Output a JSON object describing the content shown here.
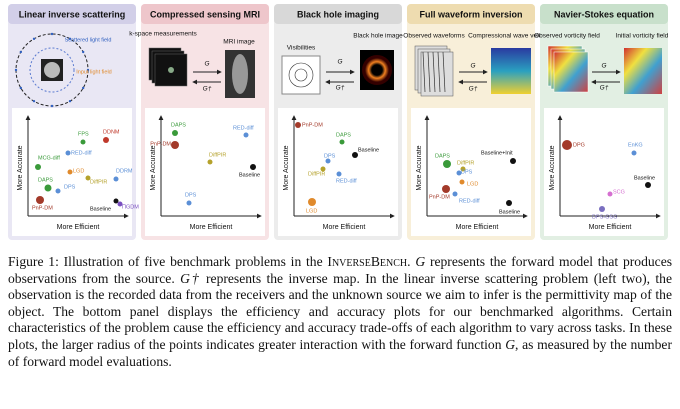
{
  "panels": [
    {
      "title": "Linear inverse scattering",
      "labels": [
        "Scattered light field",
        "Input light field"
      ],
      "y_axis": "More Accurate",
      "x_axis": "More Efficient",
      "points": [
        {
          "label": "MCG-diff",
          "color": "#3a9a3a"
        },
        {
          "label": "FPS",
          "color": "#3a9a3a"
        },
        {
          "label": "DDNM",
          "color": "#c0392b"
        },
        {
          "label": "RED-diff",
          "color": "#5b8fd6"
        },
        {
          "label": "DAPS",
          "color": "#3a9a3a"
        },
        {
          "label": "LGD",
          "color": "#e08a2c"
        },
        {
          "label": "DDRM",
          "color": "#5b8fd6"
        },
        {
          "label": "DPS",
          "color": "#5b8fd6"
        },
        {
          "label": "DiffPIR",
          "color": "#b5a22c"
        },
        {
          "label": "PnP-DM",
          "color": "#a33a2a"
        },
        {
          "label": "Baseline",
          "color": "#111111"
        },
        {
          "label": "ΠGDM",
          "color": "#7a4fc0"
        }
      ]
    },
    {
      "title": "Compressed sensing MRI",
      "labels": [
        "k-space measurements",
        "MRI image",
        "G",
        "G†"
      ],
      "y_axis": "More Accurate",
      "x_axis": "More Efficient",
      "points": [
        {
          "label": "DAPS",
          "color": "#3a9a3a"
        },
        {
          "label": "PnP-DM",
          "color": "#a33a2a"
        },
        {
          "label": "RED-diff",
          "color": "#5b8fd6"
        },
        {
          "label": "DiffPIR",
          "color": "#b5a22c"
        },
        {
          "label": "Baseline",
          "color": "#111111"
        },
        {
          "label": "DPS",
          "color": "#5b8fd6"
        }
      ]
    },
    {
      "title": "Black hole imaging",
      "labels": [
        "Visibilities",
        "Black hole image",
        "G",
        "G†"
      ],
      "y_axis": "More Accurate",
      "x_axis": "More Efficient",
      "points": [
        {
          "label": "PnP-DM",
          "color": "#a33a2a"
        },
        {
          "label": "DAPS",
          "color": "#3a9a3a"
        },
        {
          "label": "Baseline",
          "color": "#111111"
        },
        {
          "label": "DPS",
          "color": "#5b8fd6"
        },
        {
          "label": "DiffPIR",
          "color": "#b5a22c"
        },
        {
          "label": "RED-diff",
          "color": "#5b8fd6"
        },
        {
          "label": "LGD",
          "color": "#e08a2c"
        }
      ]
    },
    {
      "title": "Full waveform inversion",
      "labels": [
        "Observed waveforms",
        "Compressional wave velocity",
        "G",
        "G†"
      ],
      "y_axis": "More Accurate",
      "x_axis": "More Efficient",
      "points": [
        {
          "label": "Baseline+Init",
          "color": "#111111"
        },
        {
          "label": "DiffPIR",
          "color": "#b5a22c"
        },
        {
          "label": "DAPS",
          "color": "#3a9a3a"
        },
        {
          "label": "DPS",
          "color": "#5b8fd6"
        },
        {
          "label": "LGD",
          "color": "#e08a2c"
        },
        {
          "label": "PnP-DM",
          "color": "#a33a2a"
        },
        {
          "label": "RED-diff",
          "color": "#5b8fd6"
        },
        {
          "label": "Baseline",
          "color": "#111111"
        }
      ]
    },
    {
      "title": "Navier-Stokes equation",
      "labels": [
        "Observed vorticity field",
        "Initial vorticity field",
        "G",
        "G†"
      ],
      "y_axis": "More Accurate",
      "x_axis": "More Efficient",
      "points": [
        {
          "label": "EnKG",
          "color": "#5b8fd6"
        },
        {
          "label": "DPG",
          "color": "#a33a2a"
        },
        {
          "label": "Baseline",
          "color": "#111111"
        },
        {
          "label": "SCG",
          "color": "#d56fd0"
        },
        {
          "label": "DPS-GSG",
          "color": "#7a6fc0"
        }
      ]
    }
  ],
  "caption": {
    "label": "Figure 1:",
    "segments": [
      "Illustration of five benchmark problems in the ",
      "InverseBench",
      ". ",
      "G",
      " represents the forward model that produces observations from the source. ",
      "G†",
      " represents the inverse map. In the linear inverse scattering problem (left two), the observation is the recorded data from the receivers and the unknown source we aim to infer is the permittivity map of the object. The bottom panel displays the efficiency and accuracy plots for our benchmarked algorithms. Certain characteristics of the problem cause the efficiency and accuracy trade-offs of each algorithm to vary across tasks. In these plots, the larger radius of the points indicates greater interaction with the forward function ",
      "G",
      ", as measured by the number of forward model evaluations."
    ]
  }
}
